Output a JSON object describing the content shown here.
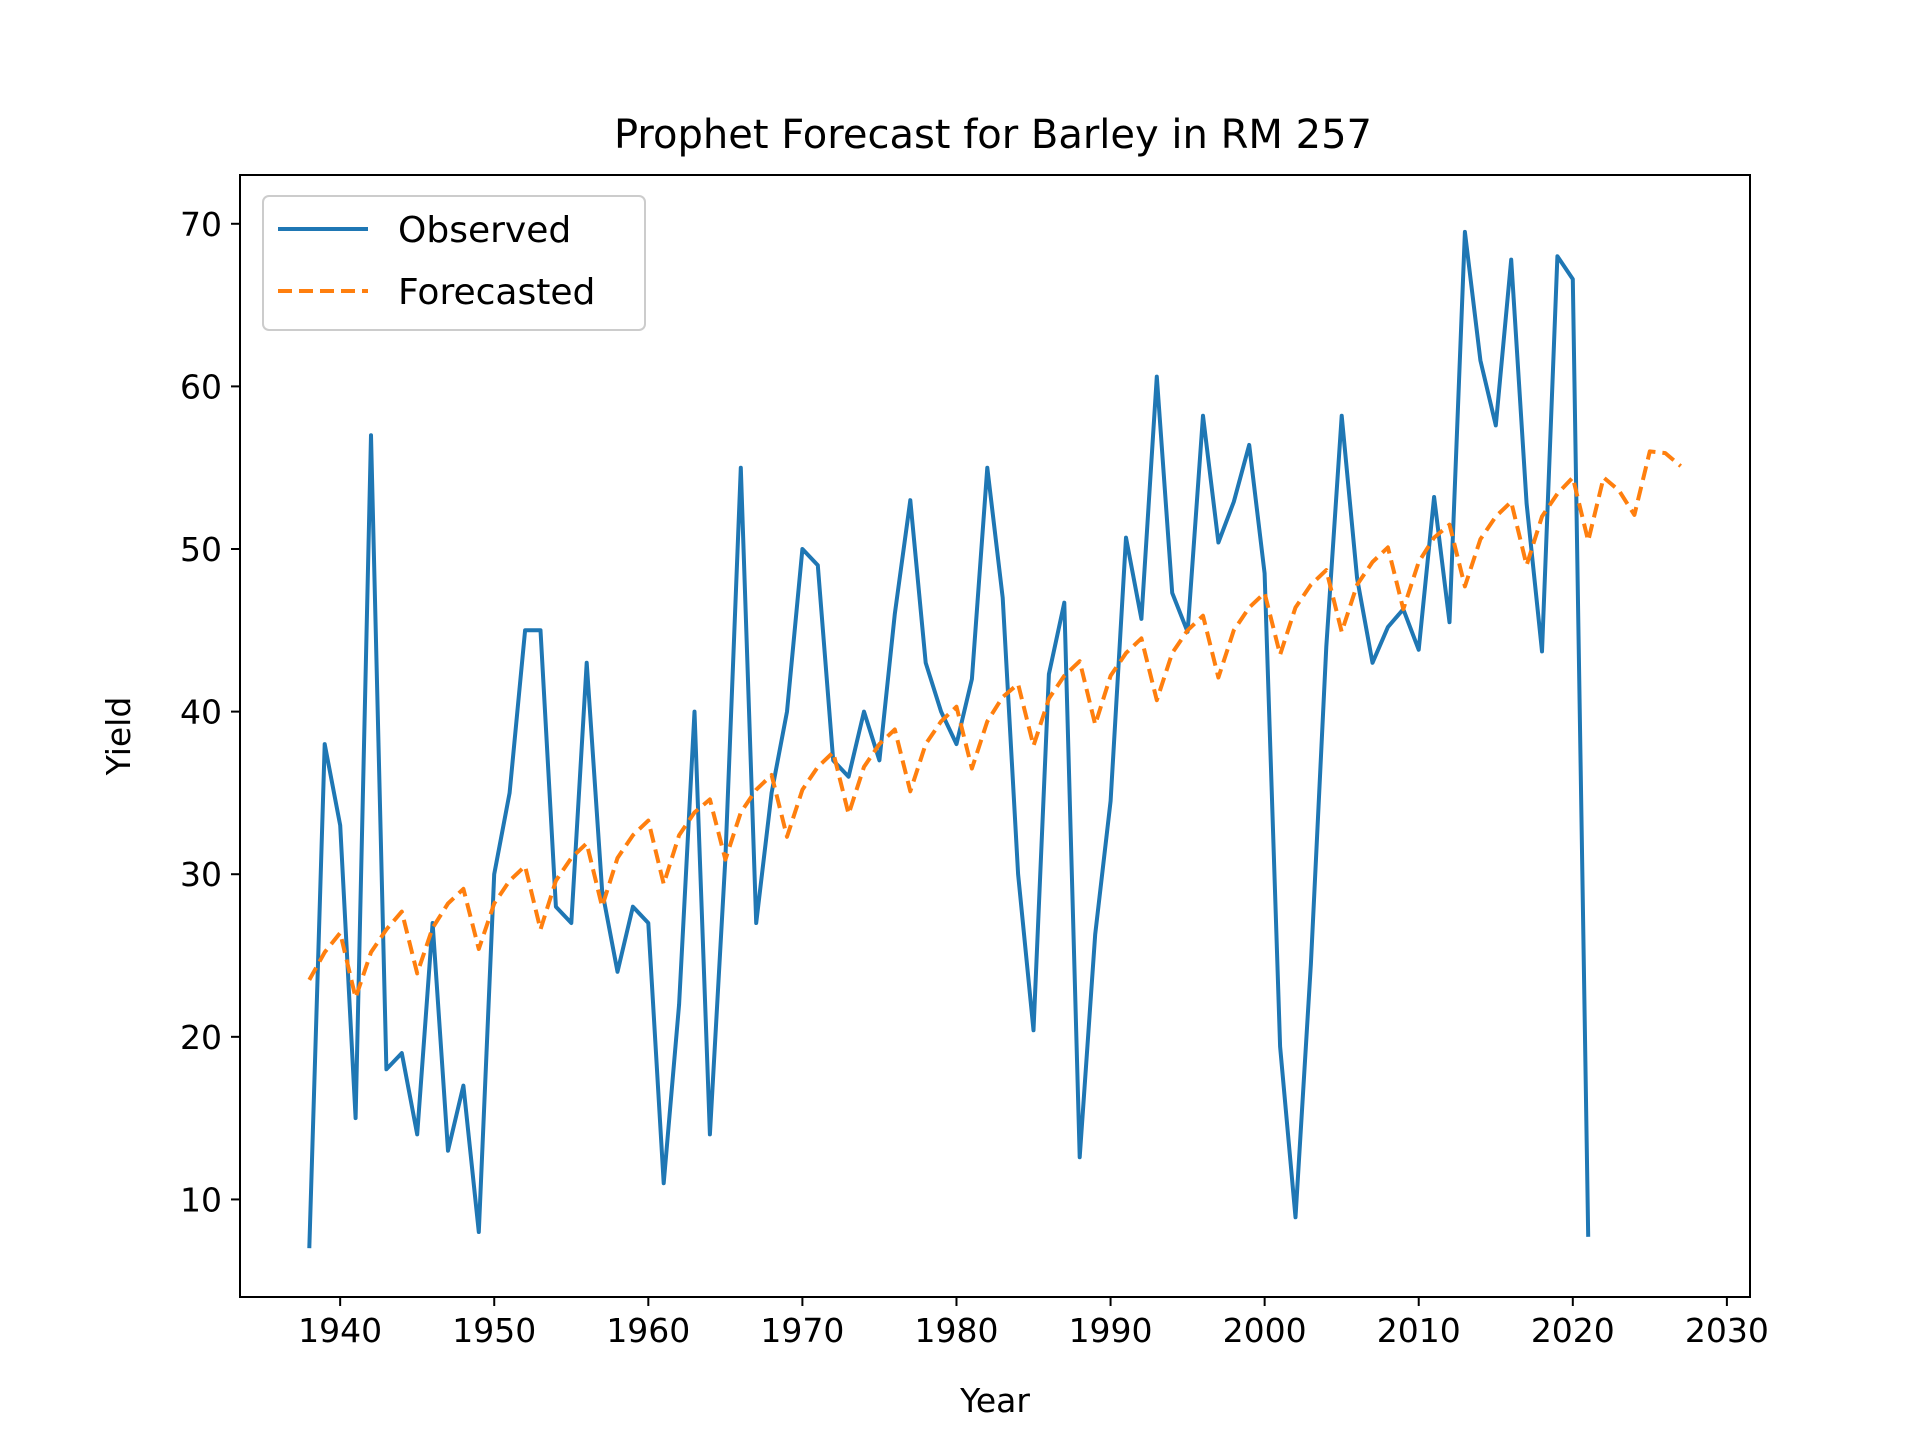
{
  "chart_data": {
    "type": "line",
    "title": "Prophet Forecast for Barley in RM 257",
    "xlabel": "Year",
    "ylabel": "Yield",
    "xlim": [
      1933.5,
      2031.5
    ],
    "ylim": [
      4,
      73
    ],
    "xticks": [
      1940,
      1950,
      1960,
      1970,
      1980,
      1990,
      2000,
      2010,
      2020,
      2030
    ],
    "yticks": [
      10,
      20,
      30,
      40,
      50,
      60,
      70
    ],
    "grid": false,
    "legend_position": "top-left",
    "series": [
      {
        "name": "Observed",
        "color": "#1f77b4",
        "style": "solid",
        "x": [
          1938,
          1939,
          1940,
          1941,
          1942,
          1943,
          1944,
          1945,
          1946,
          1947,
          1948,
          1949,
          1950,
          1951,
          1952,
          1953,
          1954,
          1955,
          1956,
          1957,
          1958,
          1959,
          1960,
          1961,
          1962,
          1963,
          1964,
          1965,
          1966,
          1967,
          1968,
          1969,
          1970,
          1971,
          1972,
          1973,
          1974,
          1975,
          1976,
          1977,
          1978,
          1979,
          1980,
          1981,
          1982,
          1983,
          1984,
          1985,
          1986,
          1987,
          1988,
          1989,
          1990,
          1991,
          1992,
          1993,
          1994,
          1995,
          1996,
          1997,
          1998,
          1999,
          2000,
          2001,
          2002,
          2003,
          2004,
          2005,
          2006,
          2007,
          2008,
          2009,
          2010,
          2011,
          2012,
          2013,
          2014,
          2015,
          2016,
          2017,
          2018,
          2019,
          2020,
          2021
        ],
        "y": [
          7,
          38,
          33,
          15,
          57,
          18,
          19,
          14,
          27,
          13,
          17,
          8,
          30,
          35,
          45,
          45,
          28,
          27,
          43,
          29,
          24,
          28,
          27,
          11,
          22,
          40,
          14,
          31,
          55,
          27,
          35,
          40,
          50,
          49,
          37,
          36,
          40,
          37,
          46,
          53,
          43,
          40,
          38,
          42,
          55,
          47,
          30,
          20.4,
          42.3,
          46.7,
          12.6,
          26.3,
          34.5,
          50.7,
          45.7,
          60.6,
          47.3,
          44.9,
          58.2,
          50.4,
          52.9,
          56.4,
          48.5,
          19.4,
          8.9,
          24.5,
          44,
          58.2,
          48.2,
          43,
          45.2,
          46.3,
          43.8,
          53.2,
          45.5,
          69.5,
          61.6,
          57.6,
          67.8,
          52.8,
          43.7,
          68,
          66.6,
          7.7
        ]
      },
      {
        "name": "Forecasted",
        "color": "#ff7f0e",
        "style": "dashed",
        "x": [
          1938,
          1939,
          1940,
          1941,
          1942,
          1943,
          1944,
          1945,
          1946,
          1947,
          1948,
          1949,
          1950,
          1951,
          1952,
          1953,
          1954,
          1955,
          1956,
          1957,
          1958,
          1959,
          1960,
          1961,
          1962,
          1963,
          1964,
          1965,
          1966,
          1967,
          1968,
          1969,
          1970,
          1971,
          1972,
          1973,
          1974,
          1975,
          1976,
          1977,
          1978,
          1979,
          1980,
          1981,
          1982,
          1983,
          1984,
          1985,
          1986,
          1987,
          1988,
          1989,
          1990,
          1991,
          1992,
          1993,
          1994,
          1995,
          1996,
          1997,
          1998,
          1999,
          2000,
          2001,
          2002,
          2003,
          2004,
          2005,
          2006,
          2007,
          2008,
          2009,
          2010,
          2011,
          2012,
          2013,
          2014,
          2015,
          2016,
          2017,
          2018,
          2019,
          2020,
          2021,
          2022,
          2023,
          2024,
          2025,
          2026,
          2027
        ],
        "y": [
          23.5,
          25.2,
          26.4,
          22.4,
          25.2,
          26.6,
          27.7,
          23.9,
          26.7,
          28.2,
          29.1,
          25.4,
          28.2,
          29.6,
          30.5,
          26.6,
          29.6,
          31.0,
          31.9,
          28.0,
          31.0,
          32.4,
          33.3,
          29.4,
          32.4,
          33.8,
          34.6,
          30.9,
          33.8,
          35.2,
          36.1,
          32.3,
          35.2,
          36.6,
          37.5,
          33.7,
          36.6,
          38.0,
          38.9,
          35.1,
          38.0,
          39.4,
          40.3,
          36.5,
          39.4,
          40.9,
          41.7,
          37.9,
          40.8,
          42.2,
          43.1,
          39.2,
          42.2,
          43.6,
          44.5,
          40.7,
          43.6,
          45.0,
          45.9,
          42.1,
          45.0,
          46.4,
          47.3,
          43.5,
          46.4,
          47.8,
          48.7,
          44.9,
          47.8,
          49.2,
          50.1,
          46.3,
          49.2,
          50.7,
          51.5,
          47.7,
          50.6,
          52.0,
          52.9,
          49.0,
          52.0,
          53.4,
          54.4,
          50.5,
          54.4,
          53.6,
          52.1,
          56.0,
          55.9,
          55.1
        ]
      }
    ]
  }
}
